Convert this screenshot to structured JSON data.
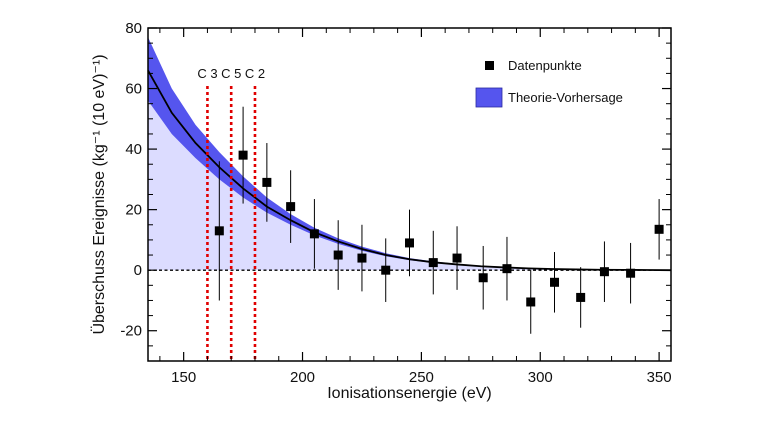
{
  "chart_data": {
    "type": "scatter",
    "xlabel": "Ionisationsenergie (eV)",
    "ylabel": "Überschuss Ereignisse (kg⁻¹ (10 eV)⁻¹)",
    "xlim": [
      135,
      355
    ],
    "ylim": [
      -30,
      80
    ],
    "x_ticks": [
      150,
      200,
      250,
      300,
      350
    ],
    "y_ticks": [
      -20,
      0,
      20,
      40,
      60,
      80
    ],
    "legend": {
      "position": "top-right",
      "entries": [
        {
          "label": "Datenpunkte",
          "kind": "marker"
        },
        {
          "label": "Theorie-Vorhersage",
          "kind": "band"
        }
      ]
    },
    "series": [
      {
        "name": "Datenpunkte",
        "x": [
          165,
          175,
          185,
          195,
          205,
          215,
          225,
          235,
          245,
          255,
          265,
          276,
          286,
          296,
          306,
          317,
          327,
          338,
          350
        ],
        "y": [
          13,
          38,
          29,
          21,
          12,
          5,
          4,
          0,
          9,
          2.5,
          4,
          -2.5,
          0.5,
          -10.5,
          -4,
          -9,
          -0.5,
          -1,
          13.5
        ],
        "y_err": [
          23,
          16,
          13,
          12,
          11.5,
          11.5,
          11,
          10.5,
          11,
          10.5,
          10.5,
          10.5,
          10.5,
          10.5,
          10,
          10,
          10,
          10,
          10
        ]
      },
      {
        "name": "Theorie-Vorhersage",
        "x": [
          135,
          145,
          155,
          165,
          175,
          185,
          195,
          205,
          215,
          225,
          235,
          245,
          255,
          265,
          275,
          285,
          295,
          305,
          315,
          325,
          335,
          345,
          355
        ],
        "y": [
          66,
          52,
          42,
          34,
          27,
          21,
          16.5,
          12.5,
          9.5,
          7,
          5,
          3.6,
          2.6,
          1.9,
          1.3,
          0.9,
          0.6,
          0.4,
          0.25,
          0.15,
          0.1,
          0.05,
          0
        ],
        "y_low": [
          56,
          45,
          37,
          30,
          24,
          19,
          15,
          11.5,
          8.7,
          6.4,
          4.6,
          3.3,
          2.4,
          1.7,
          1.2,
          0.8,
          0.55,
          0.35,
          0.22,
          0.13,
          0.08,
          0.04,
          0
        ],
        "y_high": [
          77,
          60,
          48,
          39,
          31,
          24,
          18.5,
          14,
          10.5,
          7.8,
          5.6,
          4,
          2.9,
          2.1,
          1.45,
          1.0,
          0.68,
          0.45,
          0.28,
          0.17,
          0.11,
          0.06,
          0
        ]
      }
    ],
    "markers": [
      {
        "label": "C 3",
        "x": 160
      },
      {
        "label": "C 5",
        "x": 170
      },
      {
        "label": "C 2",
        "x": 180
      }
    ],
    "baseline_y": 0,
    "grid": false
  },
  "colors": {
    "band": "#5555ee",
    "fill": "#dcdcff",
    "curve": "#000000",
    "marker_line": "#e00000",
    "points": "#000000"
  }
}
